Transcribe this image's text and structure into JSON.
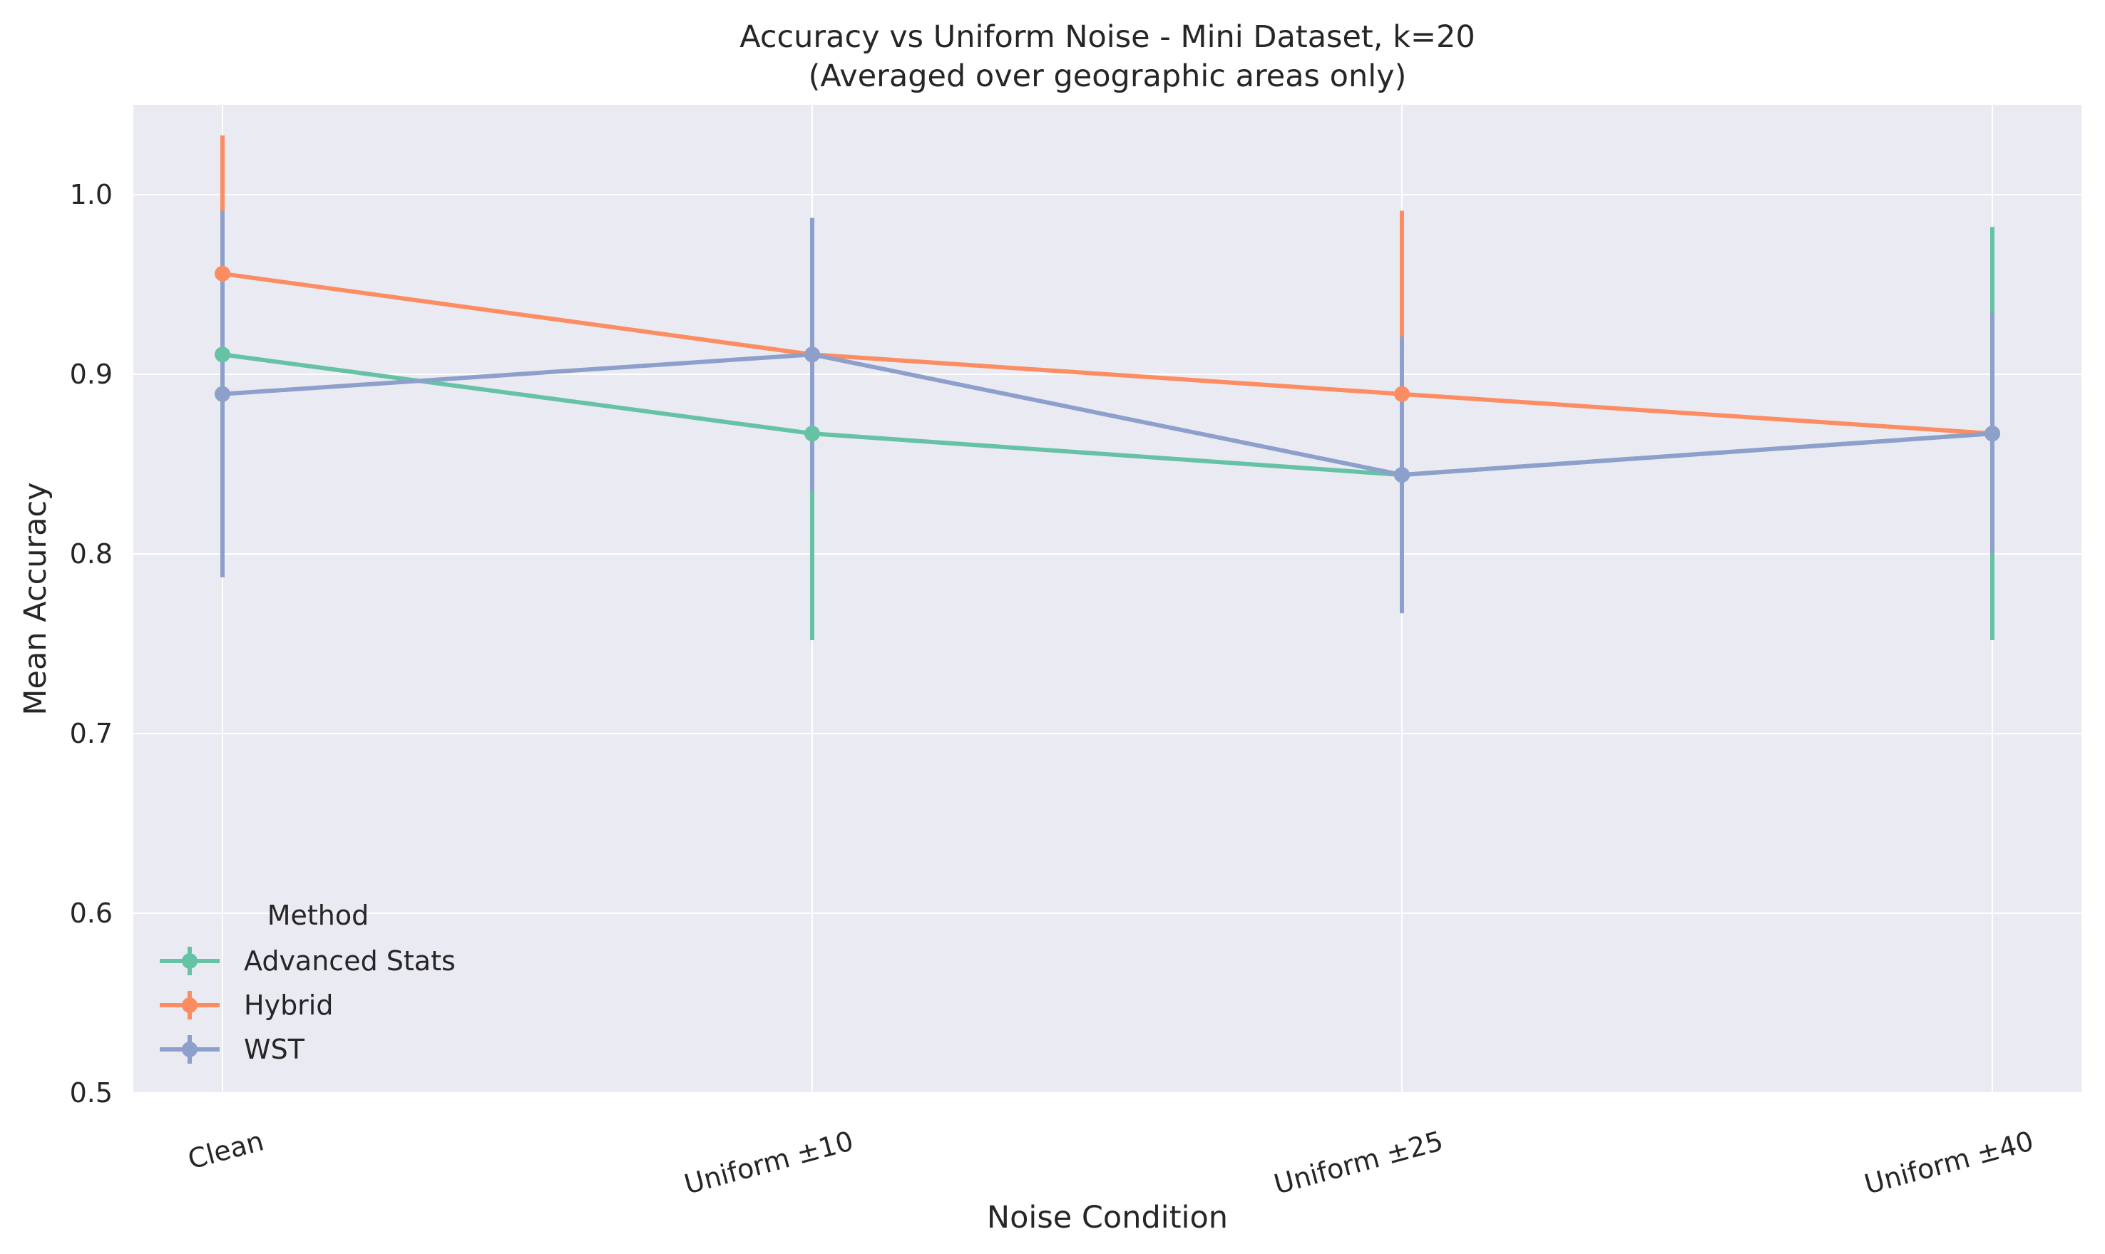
{
  "chart_data": {
    "type": "line",
    "title": "Accuracy vs Uniform Noise - Mini Dataset, k=20",
    "subtitle": "(Averaged over geographic areas only)",
    "xlabel": "Noise Condition",
    "ylabel": "Mean Accuracy",
    "categories": [
      "Clean",
      "Uniform ±10",
      "Uniform ±25",
      "Uniform ±40"
    ],
    "ylim": [
      0.5,
      1.05
    ],
    "yticks": [
      0.5,
      0.6,
      0.7,
      0.8,
      0.9,
      1.0
    ],
    "ytick_labels": [
      "0.5",
      "0.6",
      "0.7",
      "0.8",
      "0.9",
      "1.0"
    ],
    "grid": true,
    "legend": {
      "title": "Method",
      "position": "lower-left"
    },
    "series": [
      {
        "name": "Advanced Stats",
        "color": "#66c2a5",
        "values": [
          0.911,
          0.867,
          0.844,
          0.867
        ],
        "error": [
          0.08,
          0.115,
          0.077,
          0.115
        ]
      },
      {
        "name": "Hybrid",
        "color": "#fc8d62",
        "values": [
          0.956,
          0.911,
          0.889,
          0.867
        ],
        "error": [
          0.077,
          0.076,
          0.102,
          0.0
        ]
      },
      {
        "name": "WST",
        "color": "#8da0cb",
        "values": [
          0.889,
          0.911,
          0.844,
          0.867
        ],
        "error": [
          0.102,
          0.076,
          0.077,
          0.067
        ]
      }
    ]
  }
}
